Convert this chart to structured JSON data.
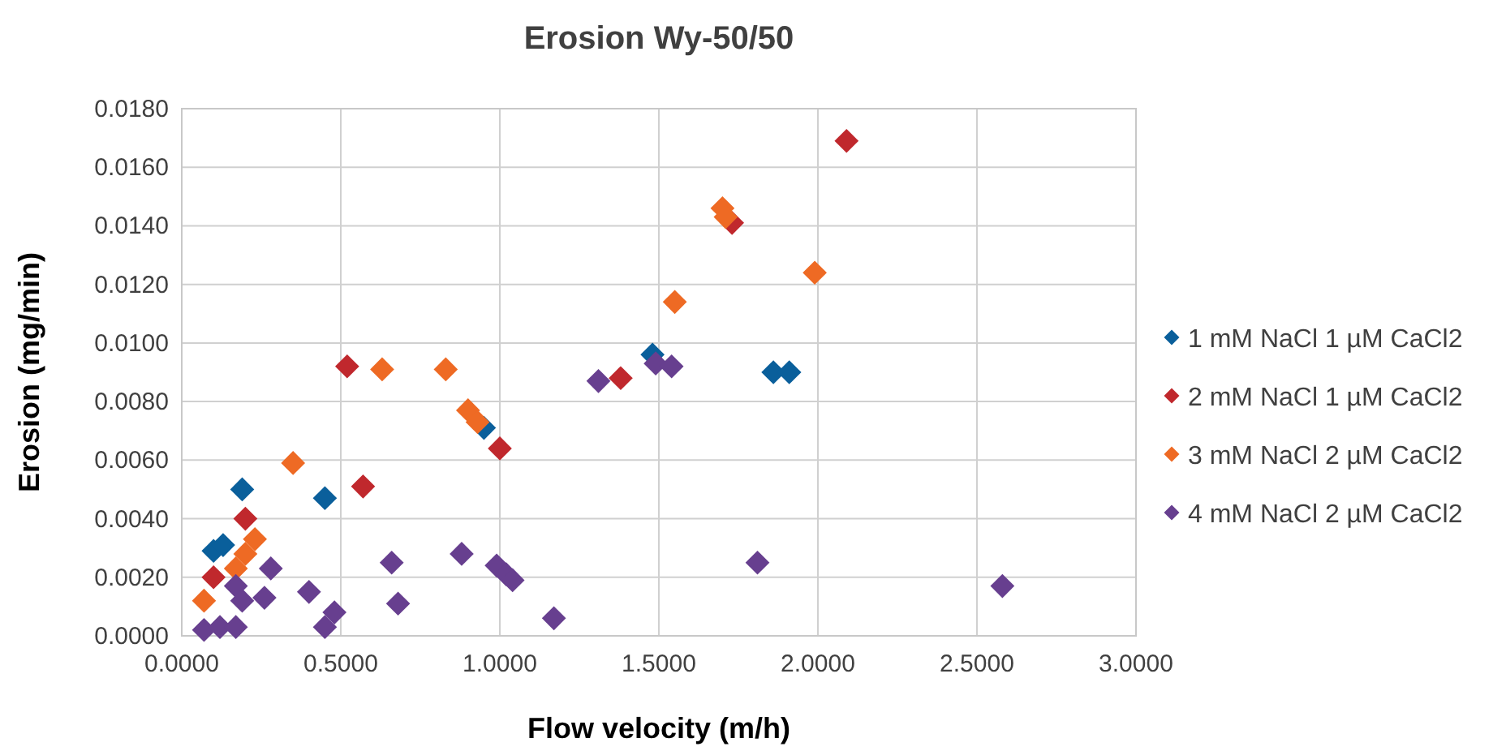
{
  "chart_data": {
    "type": "scatter",
    "title": "Erosion Wy-50/50",
    "xlabel": "Flow velocity (m/h)",
    "ylabel": "Erosion (mg/min)",
    "xlim": [
      0,
      3
    ],
    "xticks": [
      {
        "value": 0,
        "label": "0.0000"
      },
      {
        "value": 0.5,
        "label": "0.5000"
      },
      {
        "value": 1,
        "label": "1.0000"
      },
      {
        "value": 1.5,
        "label": "1.5000"
      },
      {
        "value": 2,
        "label": "2.0000"
      },
      {
        "value": 2.5,
        "label": "2.5000"
      },
      {
        "value": 3,
        "label": "3.0000"
      }
    ],
    "ylim": [
      0,
      0.018
    ],
    "yticks": [
      {
        "value": 0,
        "label": "0.0000"
      },
      {
        "value": 0.002,
        "label": "0.0020"
      },
      {
        "value": 0.004,
        "label": "0.0040"
      },
      {
        "value": 0.006,
        "label": "0.0060"
      },
      {
        "value": 0.008,
        "label": "0.0080"
      },
      {
        "value": 0.01,
        "label": "0.0100"
      },
      {
        "value": 0.012,
        "label": "0.0120"
      },
      {
        "value": 0.014,
        "label": "0.0140"
      },
      {
        "value": 0.016,
        "label": "0.0160"
      },
      {
        "value": 0.018,
        "label": "0.0180"
      }
    ],
    "grid": true,
    "legend": "right",
    "marker": "diamond",
    "series": [
      {
        "name": "1 mM NaCl 1 µM CaCl2",
        "color": "#0a5f9b",
        "x": [
          0.1,
          0.13,
          0.19,
          0.45,
          0.95,
          1.48,
          1.86,
          1.91
        ],
        "values": [
          0.0029,
          0.0031,
          0.005,
          0.0047,
          0.0071,
          0.0096,
          0.009,
          0.009
        ]
      },
      {
        "name": "2 mM NaCl 1 µM CaCl2",
        "color": "#c0282d",
        "x": [
          0.1,
          0.2,
          0.52,
          0.57,
          1.0,
          1.38,
          1.73,
          2.09
        ],
        "values": [
          0.002,
          0.004,
          0.0092,
          0.0051,
          0.0064,
          0.0088,
          0.0141,
          0.0169
        ]
      },
      {
        "name": "3 mM NaCl 2 µM CaCl2",
        "color": "#ee6a24",
        "x": [
          0.07,
          0.17,
          0.2,
          0.23,
          0.35,
          0.63,
          0.83,
          0.9,
          0.93,
          1.55,
          1.7,
          1.71,
          1.99
        ],
        "values": [
          0.0012,
          0.0023,
          0.0028,
          0.0033,
          0.0059,
          0.0091,
          0.0091,
          0.0077,
          0.0073,
          0.0114,
          0.0146,
          0.0143,
          0.0124
        ]
      },
      {
        "name": "4 mM NaCl 2 µM CaCl2",
        "color": "#673f8f",
        "x": [
          0.07,
          0.12,
          0.17,
          0.17,
          0.19,
          0.26,
          0.28,
          0.4,
          0.45,
          0.48,
          0.66,
          0.68,
          0.88,
          0.99,
          1.02,
          1.04,
          1.17,
          1.31,
          1.49,
          1.54,
          1.81,
          2.58
        ],
        "values": [
          0.0002,
          0.0003,
          0.0003,
          0.0017,
          0.0012,
          0.0013,
          0.0023,
          0.0015,
          0.0003,
          0.0008,
          0.0025,
          0.0011,
          0.0028,
          0.0024,
          0.0021,
          0.0019,
          0.0006,
          0.0087,
          0.0093,
          0.0092,
          0.0025,
          0.0017
        ]
      }
    ]
  }
}
